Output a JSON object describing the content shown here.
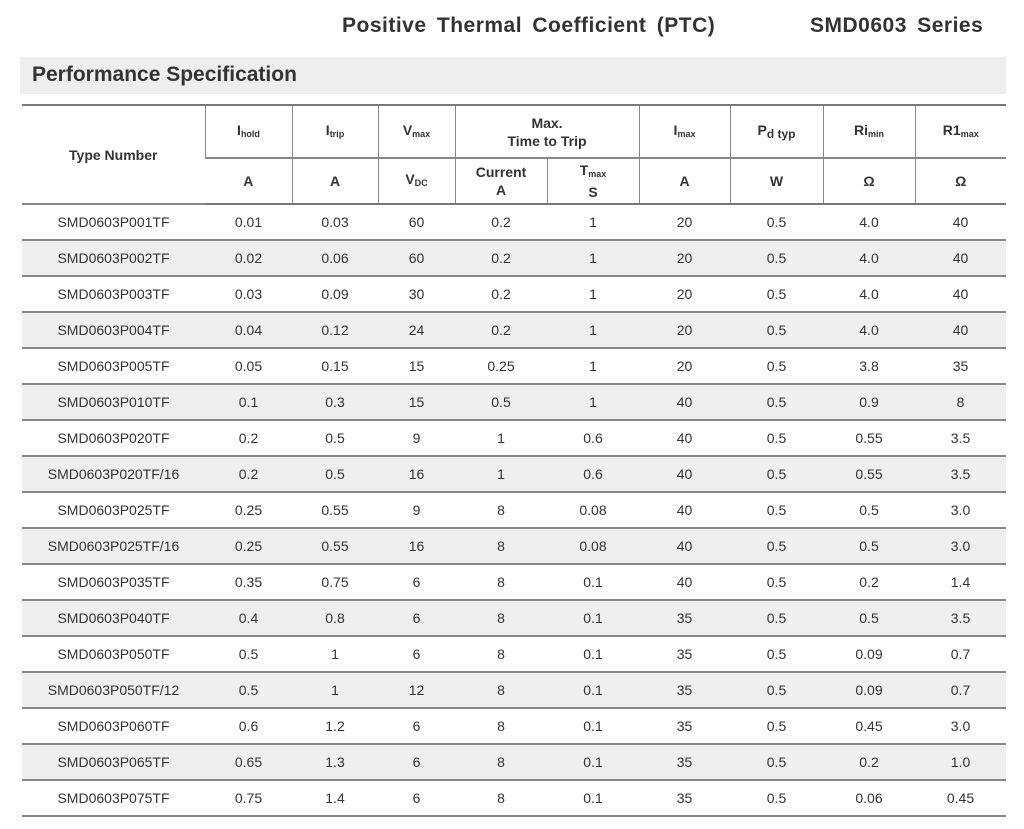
{
  "header": {
    "title": "Positive Thermal Coefficient (PTC)",
    "series": "SMD0603 Series"
  },
  "section": {
    "title": "Performance Specification"
  },
  "table": {
    "type_number": "Type Number",
    "cols": [
      {
        "main": "I",
        "sub": "hold",
        "unit": "A"
      },
      {
        "main": "I",
        "sub": "trip",
        "unit": "A"
      },
      {
        "main": "V",
        "sub": "max",
        "unit_main": "V",
        "unit_sub": "DC"
      },
      {
        "main": "P",
        "sub": "d typ",
        "unit": "W"
      },
      {
        "main": "I",
        "sub": "max",
        "unit": "A"
      },
      {
        "main": "Ri",
        "sub": "min",
        "unit": "Ω"
      },
      {
        "main": "R1",
        "sub": "max",
        "unit": "Ω"
      }
    ],
    "ttt": {
      "line1": "Max.",
      "line2": "Time to Trip",
      "current": "Current",
      "current_unit": "A",
      "tmax_main": "T",
      "tmax_sub": "max",
      "tmax_unit": "S"
    },
    "rows": [
      [
        "SMD0603P001TF",
        "0.01",
        "0.03",
        "60",
        "0.2",
        "1",
        "20",
        "0.5",
        "4.0",
        "40"
      ],
      [
        "SMD0603P002TF",
        "0.02",
        "0.06",
        "60",
        "0.2",
        "1",
        "20",
        "0.5",
        "4.0",
        "40"
      ],
      [
        "SMD0603P003TF",
        "0.03",
        "0.09",
        "30",
        "0.2",
        "1",
        "20",
        "0.5",
        "4.0",
        "40"
      ],
      [
        "SMD0603P004TF",
        "0.04",
        "0.12",
        "24",
        "0.2",
        "1",
        "20",
        "0.5",
        "4.0",
        "40"
      ],
      [
        "SMD0603P005TF",
        "0.05",
        "0.15",
        "15",
        "0.25",
        "1",
        "20",
        "0.5",
        "3.8",
        "35"
      ],
      [
        "SMD0603P010TF",
        "0.1",
        "0.3",
        "15",
        "0.5",
        "1",
        "40",
        "0.5",
        "0.9",
        "8"
      ],
      [
        "SMD0603P020TF",
        "0.2",
        "0.5",
        "9",
        "1",
        "0.6",
        "40",
        "0.5",
        "0.55",
        "3.5"
      ],
      [
        "SMD0603P020TF/16",
        "0.2",
        "0.5",
        "16",
        "1",
        "0.6",
        "40",
        "0.5",
        "0.55",
        "3.5"
      ],
      [
        "SMD0603P025TF",
        "0.25",
        "0.55",
        "9",
        "8",
        "0.08",
        "40",
        "0.5",
        "0.5",
        "3.0"
      ],
      [
        "SMD0603P025TF/16",
        "0.25",
        "0.55",
        "16",
        "8",
        "0.08",
        "40",
        "0.5",
        "0.5",
        "3.0"
      ],
      [
        "SMD0603P035TF",
        "0.35",
        "0.75",
        "6",
        "8",
        "0.1",
        "40",
        "0.5",
        "0.2",
        "1.4"
      ],
      [
        "SMD0603P040TF",
        "0.4",
        "0.8",
        "6",
        "8",
        "0.1",
        "35",
        "0.5",
        "0.5",
        "3.5"
      ],
      [
        "SMD0603P050TF",
        "0.5",
        "1",
        "6",
        "8",
        "0.1",
        "35",
        "0.5",
        "0.09",
        "0.7"
      ],
      [
        "SMD0603P050TF/12",
        "0.5",
        "1",
        "12",
        "8",
        "0.1",
        "35",
        "0.5",
        "0.09",
        "0.7"
      ],
      [
        "SMD0603P060TF",
        "0.6",
        "1.2",
        "6",
        "8",
        "0.1",
        "35",
        "0.5",
        "0.45",
        "3.0"
      ],
      [
        "SMD0603P065TF",
        "0.65",
        "1.3",
        "6",
        "8",
        "0.1",
        "35",
        "0.5",
        "0.2",
        "1.0"
      ],
      [
        "SMD0603P075TF",
        "0.75",
        "1.4",
        "6",
        "8",
        "0.1",
        "35",
        "0.5",
        "0.06",
        "0.45"
      ]
    ]
  }
}
